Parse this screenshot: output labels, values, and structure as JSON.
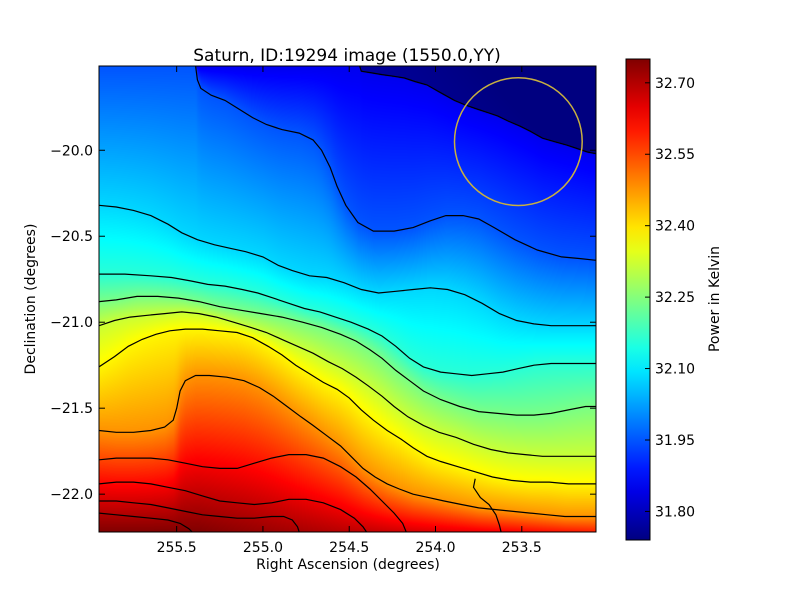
{
  "chart_data": {
    "type": "heatmap",
    "title": "Saturn, ID:19294 image (1550.0,YY)",
    "xlabel": "Right Ascension (degrees)",
    "ylabel": "Declination (degrees)",
    "colorbar_label": "Power in Kelvin",
    "colormap": "jet",
    "xlim": [
      255.95,
      253.07
    ],
    "ylim": [
      -22.22,
      -19.51
    ],
    "x_inverted": true,
    "clim": [
      31.74,
      32.75
    ],
    "x_ticks": [
      {
        "value": 255.5,
        "label": "255.5"
      },
      {
        "value": 255.0,
        "label": "255.0"
      },
      {
        "value": 254.5,
        "label": "254.5"
      },
      {
        "value": 254.0,
        "label": "254.0"
      },
      {
        "value": 253.5,
        "label": "253.5"
      }
    ],
    "y_ticks": [
      {
        "value": -20.0,
        "label": "−20.0"
      },
      {
        "value": -20.5,
        "label": "−20.5"
      },
      {
        "value": -21.0,
        "label": "−21.0"
      },
      {
        "value": -21.5,
        "label": "−21.5"
      },
      {
        "value": -22.0,
        "label": "−22.0"
      }
    ],
    "colorbar_ticks": [
      {
        "value": 32.7,
        "label": "32.70"
      },
      {
        "value": 32.55,
        "label": "32.55"
      },
      {
        "value": 32.4,
        "label": "32.40"
      },
      {
        "value": 32.25,
        "label": "32.25"
      },
      {
        "value": 32.1,
        "label": "32.10"
      },
      {
        "value": 31.95,
        "label": "31.95"
      },
      {
        "value": 31.8,
        "label": "31.80"
      }
    ],
    "circle_marker": {
      "ra": 253.52,
      "dec": -19.95,
      "radius_deg": 0.37,
      "color": "#c8b040"
    },
    "contour_color": "#000000",
    "contours": [
      [
        [
          254.44,
          -19.51
        ],
        [
          254.43,
          -19.54
        ],
        [
          254.37,
          -19.55
        ],
        [
          254.31,
          -19.56
        ],
        [
          254.24,
          -19.57
        ],
        [
          254.18,
          -19.58
        ],
        [
          254.12,
          -19.6
        ],
        [
          254.05,
          -19.62
        ],
        [
          253.98,
          -19.66
        ],
        [
          253.89,
          -19.71
        ],
        [
          253.82,
          -19.74
        ],
        [
          253.76,
          -19.76
        ],
        [
          253.7,
          -19.78
        ],
        [
          253.64,
          -19.8
        ],
        [
          253.58,
          -19.83
        ],
        [
          253.51,
          -19.86
        ],
        [
          253.45,
          -19.89
        ],
        [
          253.38,
          -19.93
        ],
        [
          253.31,
          -19.95
        ],
        [
          253.24,
          -19.97
        ],
        [
          253.18,
          -19.99
        ],
        [
          253.12,
          -20.01
        ],
        [
          253.07,
          -20.02
        ]
      ],
      [
        [
          255.39,
          -19.51
        ],
        [
          255.38,
          -19.59
        ],
        [
          255.36,
          -19.64
        ],
        [
          255.3,
          -19.68
        ],
        [
          255.22,
          -19.71
        ],
        [
          255.14,
          -19.76
        ],
        [
          255.06,
          -19.81
        ],
        [
          254.98,
          -19.85
        ],
        [
          254.89,
          -19.88
        ],
        [
          254.79,
          -19.9
        ],
        [
          254.71,
          -19.94
        ],
        [
          254.66,
          -20.0
        ],
        [
          254.61,
          -20.1
        ],
        [
          254.57,
          -20.21
        ],
        [
          254.52,
          -20.32
        ],
        [
          254.45,
          -20.42
        ],
        [
          254.36,
          -20.47
        ],
        [
          254.24,
          -20.47
        ],
        [
          254.13,
          -20.45
        ],
        [
          254.03,
          -20.41
        ],
        [
          253.94,
          -20.38
        ],
        [
          253.84,
          -20.38
        ],
        [
          253.75,
          -20.4
        ],
        [
          253.66,
          -20.45
        ],
        [
          253.54,
          -20.52
        ],
        [
          253.41,
          -20.58
        ],
        [
          253.27,
          -20.62
        ],
        [
          253.16,
          -20.63
        ],
        [
          253.07,
          -20.64
        ]
      ],
      [
        [
          255.95,
          -20.32
        ],
        [
          255.85,
          -20.33
        ],
        [
          255.75,
          -20.35
        ],
        [
          255.65,
          -20.38
        ],
        [
          255.55,
          -20.43
        ],
        [
          255.47,
          -20.48
        ],
        [
          255.38,
          -20.52
        ],
        [
          255.28,
          -20.55
        ],
        [
          255.19,
          -20.57
        ],
        [
          255.1,
          -20.59
        ],
        [
          255.0,
          -20.62
        ],
        [
          254.91,
          -20.67
        ],
        [
          254.83,
          -20.7
        ],
        [
          254.73,
          -20.73
        ],
        [
          254.63,
          -20.74
        ],
        [
          254.53,
          -20.77
        ],
        [
          254.43,
          -20.81
        ],
        [
          254.33,
          -20.83
        ],
        [
          254.23,
          -20.82
        ],
        [
          254.13,
          -20.81
        ],
        [
          254.03,
          -20.8
        ],
        [
          253.93,
          -20.81
        ],
        [
          253.83,
          -20.84
        ],
        [
          253.73,
          -20.89
        ],
        [
          253.63,
          -20.95
        ],
        [
          253.53,
          -20.99
        ],
        [
          253.43,
          -21.01
        ],
        [
          253.33,
          -21.02
        ],
        [
          253.23,
          -21.02
        ],
        [
          253.13,
          -21.02
        ],
        [
          253.07,
          -21.02
        ]
      ],
      [
        [
          255.95,
          -20.72
        ],
        [
          255.8,
          -20.72
        ],
        [
          255.65,
          -20.73
        ],
        [
          255.53,
          -20.74
        ],
        [
          255.42,
          -20.76
        ],
        [
          255.32,
          -20.78
        ],
        [
          255.22,
          -20.79
        ],
        [
          255.12,
          -20.81
        ],
        [
          255.03,
          -20.83
        ],
        [
          254.94,
          -20.86
        ],
        [
          254.85,
          -20.89
        ],
        [
          254.76,
          -20.92
        ],
        [
          254.67,
          -20.94
        ],
        [
          254.58,
          -20.97
        ],
        [
          254.49,
          -21.0
        ],
        [
          254.39,
          -21.04
        ],
        [
          254.31,
          -21.08
        ],
        [
          254.23,
          -21.14
        ],
        [
          254.15,
          -21.21
        ],
        [
          254.07,
          -21.26
        ],
        [
          253.97,
          -21.29
        ],
        [
          253.88,
          -21.3
        ],
        [
          253.79,
          -21.31
        ],
        [
          253.7,
          -21.3
        ],
        [
          253.61,
          -21.29
        ],
        [
          253.52,
          -21.27
        ],
        [
          253.43,
          -21.25
        ],
        [
          253.33,
          -21.24
        ],
        [
          253.23,
          -21.24
        ],
        [
          253.13,
          -21.24
        ],
        [
          253.07,
          -21.24
        ]
      ],
      [
        [
          255.95,
          -20.88
        ],
        [
          255.85,
          -20.87
        ],
        [
          255.73,
          -20.85
        ],
        [
          255.61,
          -20.85
        ],
        [
          255.49,
          -20.86
        ],
        [
          255.37,
          -20.88
        ],
        [
          255.25,
          -20.91
        ],
        [
          255.13,
          -20.93
        ],
        [
          255.01,
          -20.95
        ],
        [
          254.89,
          -20.97
        ],
        [
          254.77,
          -21.0
        ],
        [
          254.66,
          -21.03
        ],
        [
          254.55,
          -21.07
        ],
        [
          254.46,
          -21.11
        ],
        [
          254.38,
          -21.16
        ],
        [
          254.31,
          -21.21
        ],
        [
          254.23,
          -21.28
        ],
        [
          254.15,
          -21.34
        ],
        [
          254.07,
          -21.4
        ],
        [
          253.97,
          -21.45
        ],
        [
          253.86,
          -21.49
        ],
        [
          253.75,
          -21.52
        ],
        [
          253.64,
          -21.53
        ],
        [
          253.53,
          -21.54
        ],
        [
          253.43,
          -21.54
        ],
        [
          253.33,
          -21.53
        ],
        [
          253.23,
          -21.51
        ],
        [
          253.13,
          -21.49
        ],
        [
          253.07,
          -21.49
        ]
      ],
      [
        [
          255.95,
          -21.02
        ],
        [
          255.86,
          -20.99
        ],
        [
          255.77,
          -20.97
        ],
        [
          255.67,
          -20.96
        ],
        [
          255.57,
          -20.95
        ],
        [
          255.47,
          -20.94
        ],
        [
          255.37,
          -20.95
        ],
        [
          255.27,
          -20.97
        ],
        [
          255.17,
          -21.0
        ],
        [
          255.07,
          -21.03
        ],
        [
          254.98,
          -21.06
        ],
        [
          254.89,
          -21.1
        ],
        [
          254.8,
          -21.14
        ],
        [
          254.71,
          -21.18
        ],
        [
          254.62,
          -21.23
        ],
        [
          254.54,
          -21.27
        ],
        [
          254.46,
          -21.32
        ],
        [
          254.39,
          -21.37
        ],
        [
          254.31,
          -21.43
        ],
        [
          254.24,
          -21.49
        ],
        [
          254.16,
          -21.55
        ],
        [
          254.07,
          -21.6
        ],
        [
          253.98,
          -21.64
        ],
        [
          253.88,
          -21.67
        ],
        [
          253.78,
          -21.71
        ],
        [
          253.68,
          -21.74
        ],
        [
          253.58,
          -21.76
        ],
        [
          253.48,
          -21.77
        ],
        [
          253.38,
          -21.78
        ],
        [
          253.28,
          -21.78
        ],
        [
          253.18,
          -21.78
        ],
        [
          253.07,
          -21.78
        ]
      ],
      [
        [
          255.95,
          -21.26
        ],
        [
          255.86,
          -21.2
        ],
        [
          255.78,
          -21.14
        ],
        [
          255.7,
          -21.1
        ],
        [
          255.62,
          -21.07
        ],
        [
          255.54,
          -21.05
        ],
        [
          255.45,
          -21.04
        ],
        [
          255.35,
          -21.04
        ],
        [
          255.25,
          -21.05
        ],
        [
          255.15,
          -21.06
        ],
        [
          255.06,
          -21.09
        ],
        [
          254.97,
          -21.14
        ],
        [
          254.89,
          -21.19
        ],
        [
          254.81,
          -21.25
        ],
        [
          254.73,
          -21.3
        ],
        [
          254.65,
          -21.35
        ],
        [
          254.57,
          -21.39
        ],
        [
          254.5,
          -21.44
        ],
        [
          254.43,
          -21.51
        ],
        [
          254.36,
          -21.57
        ],
        [
          254.28,
          -21.63
        ],
        [
          254.2,
          -21.68
        ],
        [
          254.13,
          -21.73
        ],
        [
          254.05,
          -21.78
        ],
        [
          253.97,
          -21.81
        ],
        [
          253.87,
          -21.84
        ],
        [
          253.77,
          -21.87
        ],
        [
          253.67,
          -21.9
        ],
        [
          253.56,
          -21.92
        ],
        [
          253.45,
          -21.93
        ],
        [
          253.34,
          -21.93
        ],
        [
          253.23,
          -21.94
        ],
        [
          253.12,
          -21.94
        ],
        [
          253.07,
          -21.94
        ]
      ],
      [
        [
          255.95,
          -21.63
        ],
        [
          255.85,
          -21.64
        ],
        [
          255.75,
          -21.64
        ],
        [
          255.65,
          -21.63
        ],
        [
          255.57,
          -21.61
        ],
        [
          255.52,
          -21.57
        ],
        [
          255.5,
          -21.5
        ],
        [
          255.48,
          -21.4
        ],
        [
          255.45,
          -21.34
        ],
        [
          255.39,
          -21.31
        ],
        [
          255.31,
          -21.31
        ],
        [
          255.21,
          -21.32
        ],
        [
          255.11,
          -21.34
        ],
        [
          255.02,
          -21.38
        ],
        [
          254.94,
          -21.43
        ],
        [
          254.86,
          -21.49
        ],
        [
          254.78,
          -21.55
        ],
        [
          254.71,
          -21.6
        ],
        [
          254.63,
          -21.66
        ],
        [
          254.55,
          -21.72
        ],
        [
          254.48,
          -21.79
        ],
        [
          254.42,
          -21.85
        ],
        [
          254.35,
          -21.9
        ],
        [
          254.28,
          -21.94
        ],
        [
          254.21,
          -21.97
        ],
        [
          254.13,
          -22.0
        ],
        [
          254.04,
          -22.02
        ],
        [
          253.95,
          -22.04
        ],
        [
          253.85,
          -22.06
        ],
        [
          253.75,
          -22.08
        ],
        [
          253.65,
          -22.09
        ],
        [
          253.55,
          -22.1
        ],
        [
          253.45,
          -22.11
        ],
        [
          253.35,
          -22.12
        ],
        [
          253.25,
          -22.13
        ],
        [
          253.15,
          -22.13
        ],
        [
          253.07,
          -22.13
        ]
      ],
      [
        [
          255.95,
          -21.8
        ],
        [
          255.85,
          -21.79
        ],
        [
          255.75,
          -21.79
        ],
        [
          255.65,
          -21.79
        ],
        [
          255.55,
          -21.8
        ],
        [
          255.45,
          -21.82
        ],
        [
          255.35,
          -21.84
        ],
        [
          255.25,
          -21.85
        ],
        [
          255.15,
          -21.85
        ],
        [
          255.05,
          -21.82
        ],
        [
          254.95,
          -21.79
        ],
        [
          254.85,
          -21.77
        ],
        [
          254.75,
          -21.77
        ],
        [
          254.65,
          -21.79
        ],
        [
          254.55,
          -21.84
        ],
        [
          254.46,
          -21.9
        ],
        [
          254.38,
          -21.97
        ],
        [
          254.31,
          -22.04
        ],
        [
          254.24,
          -22.11
        ],
        [
          254.19,
          -22.17
        ],
        [
          254.17,
          -22.22
        ]
      ],
      [
        [
          255.95,
          -21.94
        ],
        [
          255.85,
          -21.93
        ],
        [
          255.75,
          -21.93
        ],
        [
          255.65,
          -21.94
        ],
        [
          255.55,
          -21.96
        ],
        [
          255.45,
          -21.98
        ],
        [
          255.35,
          -22.01
        ],
        [
          255.25,
          -22.04
        ],
        [
          255.15,
          -22.05
        ],
        [
          255.05,
          -22.06
        ],
        [
          254.95,
          -22.05
        ],
        [
          254.85,
          -22.03
        ],
        [
          254.75,
          -22.03
        ],
        [
          254.65,
          -22.05
        ],
        [
          254.55,
          -22.09
        ],
        [
          254.47,
          -22.14
        ],
        [
          254.42,
          -22.19
        ],
        [
          254.4,
          -22.22
        ]
      ],
      [
        [
          255.95,
          -22.04
        ],
        [
          255.85,
          -22.04
        ],
        [
          255.75,
          -22.05
        ],
        [
          255.65,
          -22.06
        ],
        [
          255.55,
          -22.08
        ],
        [
          255.45,
          -22.1
        ],
        [
          255.35,
          -22.12
        ],
        [
          255.25,
          -22.13
        ],
        [
          255.15,
          -22.14
        ],
        [
          255.05,
          -22.14
        ],
        [
          254.95,
          -22.13
        ],
        [
          254.88,
          -22.13
        ],
        [
          254.83,
          -22.15
        ],
        [
          254.8,
          -22.19
        ],
        [
          254.79,
          -22.22
        ]
      ],
      [
        [
          255.95,
          -22.11
        ],
        [
          255.85,
          -22.12
        ],
        [
          255.75,
          -22.13
        ],
        [
          255.65,
          -22.14
        ],
        [
          255.55,
          -22.15
        ],
        [
          255.48,
          -22.17
        ],
        [
          255.43,
          -22.2
        ],
        [
          255.41,
          -22.22
        ]
      ],
      [
        [
          253.77,
          -21.91
        ],
        [
          253.78,
          -21.96
        ],
        [
          253.74,
          -22.02
        ],
        [
          253.69,
          -22.06
        ],
        [
          253.65,
          -22.12
        ],
        [
          253.63,
          -22.18
        ],
        [
          253.62,
          -22.22
        ]
      ]
    ]
  }
}
